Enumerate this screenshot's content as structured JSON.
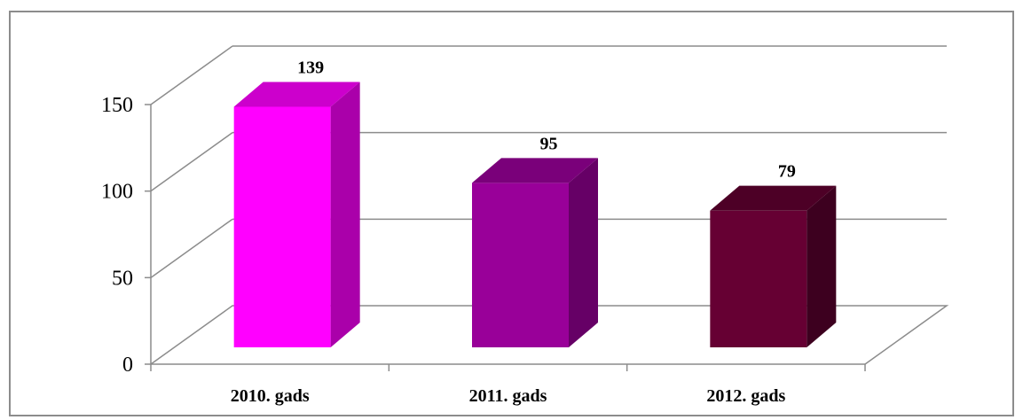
{
  "chart_data": {
    "type": "bar",
    "style": "3d-column",
    "categories": [
      "2010. gads",
      "2011. gads",
      "2012. gads"
    ],
    "values": [
      139,
      95,
      79
    ],
    "data_labels": [
      "139",
      "95",
      "79"
    ],
    "ylim": [
      0,
      150
    ],
    "yticks": [
      0,
      50,
      100,
      150
    ],
    "ytick_labels": [
      "0",
      "50",
      "100",
      "150"
    ],
    "grid": true,
    "legend": "none",
    "colors": {
      "bars": [
        "#ff00ff",
        "#990099",
        "#660033"
      ],
      "bar_sides": [
        "#aa00aa",
        "#660066",
        "#3d001f"
      ],
      "bar_tops": [
        "#cc00cc",
        "#7a007a",
        "#4d0026"
      ],
      "grid": "#8c8c8c",
      "frame": "#8c8c8c"
    }
  }
}
